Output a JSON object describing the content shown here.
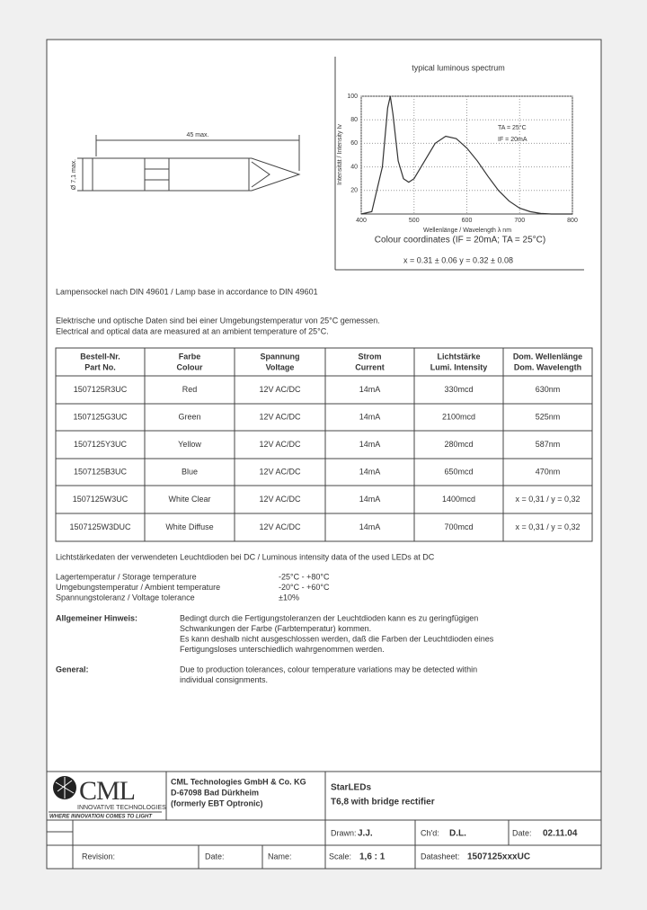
{
  "drawing": {
    "length": "45 max.",
    "diameter": "Ø 7,1 max."
  },
  "spectrum": {
    "type": "line",
    "title": "typical luminous spectrum",
    "y_label": "Intensität / Intensity Iv",
    "x_label": "Wellenlänge / Wavelength λ nm",
    "x": [
      400,
      420,
      440,
      450,
      455,
      460,
      470,
      480,
      490,
      500,
      520,
      540,
      560,
      580,
      600,
      620,
      640,
      660,
      680,
      700,
      720,
      740,
      760,
      800
    ],
    "values": [
      0,
      2,
      40,
      90,
      100,
      85,
      45,
      30,
      27,
      30,
      45,
      60,
      66,
      64,
      56,
      45,
      32,
      20,
      11,
      5,
      2,
      0.5,
      0,
      0
    ],
    "xlim": [
      400,
      800
    ],
    "ylim": [
      0,
      100
    ],
    "xticks": [
      400,
      500,
      600,
      700,
      800
    ],
    "yticks": [
      20,
      40,
      60,
      80,
      100
    ],
    "grid": true,
    "color": "#333333",
    "conditions": [
      "TA = 25°C",
      "IF = 20mA"
    ],
    "colour_title": "Colour coordinates (IF = 20mA;  TA = 25°C)",
    "colour_values": "x = 0.31 ± 0.06     y = 0.32 ± 0.08"
  },
  "lamp_base": "Lampensockel nach DIN 49601  /  Lamp base in accordance to DIN 49601",
  "conditions": [
    "Elektrische und optische Daten sind bei einer Umgebungstemperatur von 25°C gemessen.",
    "Electrical and optical data are measured at an ambient temperature of  25°C."
  ],
  "table": {
    "header": [
      [
        "Bestell-Nr.",
        "Part No."
      ],
      [
        "Farbe",
        "Colour"
      ],
      [
        "Spannung",
        "Voltage"
      ],
      [
        "Strom",
        "Current"
      ],
      [
        "Lichtstärke",
        "Lumi. Intensity"
      ],
      [
        "Dom. Wellenlänge",
        "Dom. Wavelength"
      ]
    ],
    "rows": [
      [
        "1507125R3UC",
        "Red",
        "12V AC/DC",
        "14mA",
        "330mcd",
        "630nm"
      ],
      [
        "1507125G3UC",
        "Green",
        "12V AC/DC",
        "14mA",
        "2100mcd",
        "525nm"
      ],
      [
        "1507125Y3UC",
        "Yellow",
        "12V AC/DC",
        "14mA",
        "280mcd",
        "587nm"
      ],
      [
        "1507125B3UC",
        "Blue",
        "12V AC/DC",
        "14mA",
        "650mcd",
        "470nm"
      ],
      [
        "1507125W3UC",
        "White Clear",
        "12V AC/DC",
        "14mA",
        "1400mcd",
        "x = 0,31 / y = 0,32"
      ],
      [
        "1507125W3DUC",
        "White Diffuse",
        "12V AC/DC",
        "14mA",
        "700mcd",
        "x = 0,31 / y = 0,32"
      ]
    ]
  },
  "note": "Lichtstärkedaten der verwendeten Leuchtdioden bei DC / Luminous intensity data of the used LEDs at DC",
  "specs": [
    [
      "Lagertemperatur / Storage temperature",
      "-25°C - +80°C"
    ],
    [
      "Umgebungstemperatur / Ambient temperature",
      "-20°C - +60°C"
    ],
    [
      "Spannungstoleranz / Voltage tolerance",
      "±10%"
    ]
  ],
  "remarks": [
    {
      "label": "Allgemeiner Hinweis:",
      "lines": [
        "Bedingt durch die Fertigungstoleranzen der Leuchtdioden kann es zu geringfügigen",
        "Schwankungen der Farbe (Farbtemperatur) kommen.",
        "Es kann deshalb nicht ausgeschlossen werden, daß die Farben der Leuchtdioden eines",
        "Fertigungsloses unterschiedlich wahrgenommen werden."
      ]
    },
    {
      "label": "General:",
      "lines": [
        "Due to production tolerances, colour temperature variations may be detected within",
        "individual consignments."
      ]
    }
  ],
  "title_block": {
    "logo": [
      "CML",
      "INNOVATIVE TECHNOLOGIES",
      "WHERE INNOVATION COMES TO LIGHT"
    ],
    "company": [
      "CML Technologies GmbH & Co. KG",
      "D-67098 Bad Dürkheim",
      "(formerly EBT Optronic)"
    ],
    "product": [
      "StarLEDs",
      "T6,8  with bridge rectifier"
    ],
    "fields": [
      {
        "label": "Drawn:",
        "value": "J.J."
      },
      {
        "label": "Ch'd:",
        "value": "D.L."
      },
      {
        "label": "Date:",
        "value": "02.11.04"
      },
      {
        "label": "Revision:"
      },
      {
        "label": "Date:"
      },
      {
        "label": "Name:"
      },
      {
        "label": "Scale:",
        "value": "1,6 : 1"
      },
      {
        "label": "Datasheet:",
        "value": "1507125xxxUC"
      }
    ]
  }
}
